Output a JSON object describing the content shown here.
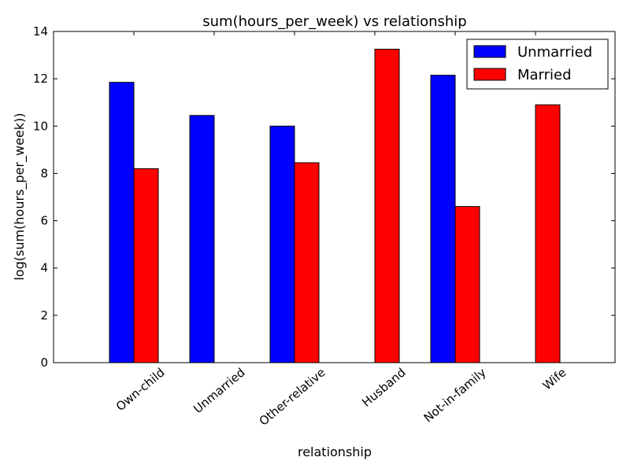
{
  "chart_data": {
    "type": "bar",
    "title": "sum(hours_per_week) vs relationship",
    "xlabel": "relationship",
    "ylabel": "log(sum(hours_per_week))",
    "ylim": [
      0,
      14
    ],
    "yticks": [
      0,
      2,
      4,
      6,
      8,
      10,
      12,
      14
    ],
    "categories": [
      "Own-child",
      "Unmarried",
      "Other-relative",
      "Husband",
      "Not-in-family",
      "Wife"
    ],
    "series": [
      {
        "name": "Unmarried",
        "color": "#0000ff",
        "values": [
          11.85,
          10.45,
          10.0,
          0,
          12.15,
          0
        ]
      },
      {
        "name": "Married",
        "color": "#ff0000",
        "values": [
          8.2,
          0,
          8.45,
          13.25,
          6.6,
          10.9
        ]
      }
    ],
    "grid": false,
    "legend_position": "top-right"
  }
}
